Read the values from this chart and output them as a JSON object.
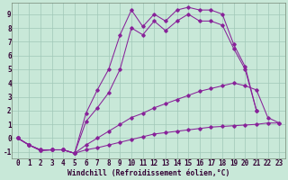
{
  "xlabel": "Windchill (Refroidissement éolien,°C)",
  "xlim": [
    -0.5,
    23.5
  ],
  "ylim": [
    -1.5,
    9.8
  ],
  "background_color": "#c8e8d8",
  "grid_color": "#a0c8b8",
  "line_color": "#882299",
  "line1_x": [
    0,
    1,
    2,
    3,
    4,
    5,
    6,
    7,
    8,
    9,
    10,
    11,
    12,
    13,
    14,
    15,
    16,
    17,
    18,
    19,
    20,
    21,
    22,
    23
  ],
  "line1_y": [
    0.0,
    -0.5,
    -0.9,
    -0.85,
    -0.85,
    -1.1,
    -0.85,
    -0.7,
    -0.5,
    -0.3,
    -0.1,
    0.1,
    0.3,
    0.4,
    0.5,
    0.6,
    0.7,
    0.8,
    0.85,
    0.9,
    0.95,
    1.0,
    1.1,
    1.1
  ],
  "line2_x": [
    0,
    1,
    2,
    3,
    4,
    5,
    6,
    7,
    8,
    9,
    10,
    11,
    12,
    13,
    14,
    15,
    16,
    17,
    18,
    19,
    20,
    21,
    22,
    23
  ],
  "line2_y": [
    0.0,
    -0.5,
    -0.9,
    -0.85,
    -0.85,
    -1.1,
    -0.5,
    0.0,
    0.5,
    1.0,
    1.5,
    1.8,
    2.2,
    2.5,
    2.8,
    3.1,
    3.4,
    3.6,
    3.8,
    4.0,
    3.8,
    3.5,
    1.5,
    1.1
  ],
  "line3_x": [
    0,
    1,
    2,
    3,
    4,
    5,
    6,
    7,
    8,
    9,
    10,
    11,
    12,
    13,
    14,
    15,
    16,
    17,
    18,
    19,
    20,
    21
  ],
  "line3_y": [
    0.0,
    -0.5,
    -0.85,
    -0.85,
    -0.85,
    -1.1,
    1.8,
    3.5,
    5.0,
    7.5,
    9.3,
    8.1,
    9.0,
    8.5,
    9.3,
    9.5,
    9.3,
    9.3,
    9.0,
    6.8,
    5.2,
    2.0
  ],
  "line4_x": [
    0,
    1,
    2,
    3,
    4,
    5,
    6,
    7,
    8,
    9,
    10,
    11,
    12,
    13,
    14,
    15,
    16,
    17,
    18,
    19,
    20,
    21
  ],
  "line4_y": [
    0.0,
    -0.5,
    -0.85,
    -0.85,
    -0.85,
    -1.1,
    1.2,
    2.2,
    3.3,
    5.0,
    8.0,
    7.5,
    8.5,
    7.8,
    8.5,
    9.0,
    8.5,
    8.5,
    8.2,
    6.5,
    5.0,
    2.0
  ],
  "ytick_vals": [
    -1,
    0,
    1,
    2,
    3,
    4,
    5,
    6,
    7,
    8,
    9
  ],
  "ytick_labels": [
    "-1",
    "0",
    "1",
    "2",
    "3",
    "4",
    "5",
    "6",
    "7",
    "8",
    "9"
  ],
  "font_size": 5.5,
  "marker": "D",
  "marker_size": 1.8,
  "linewidth": 0.75
}
